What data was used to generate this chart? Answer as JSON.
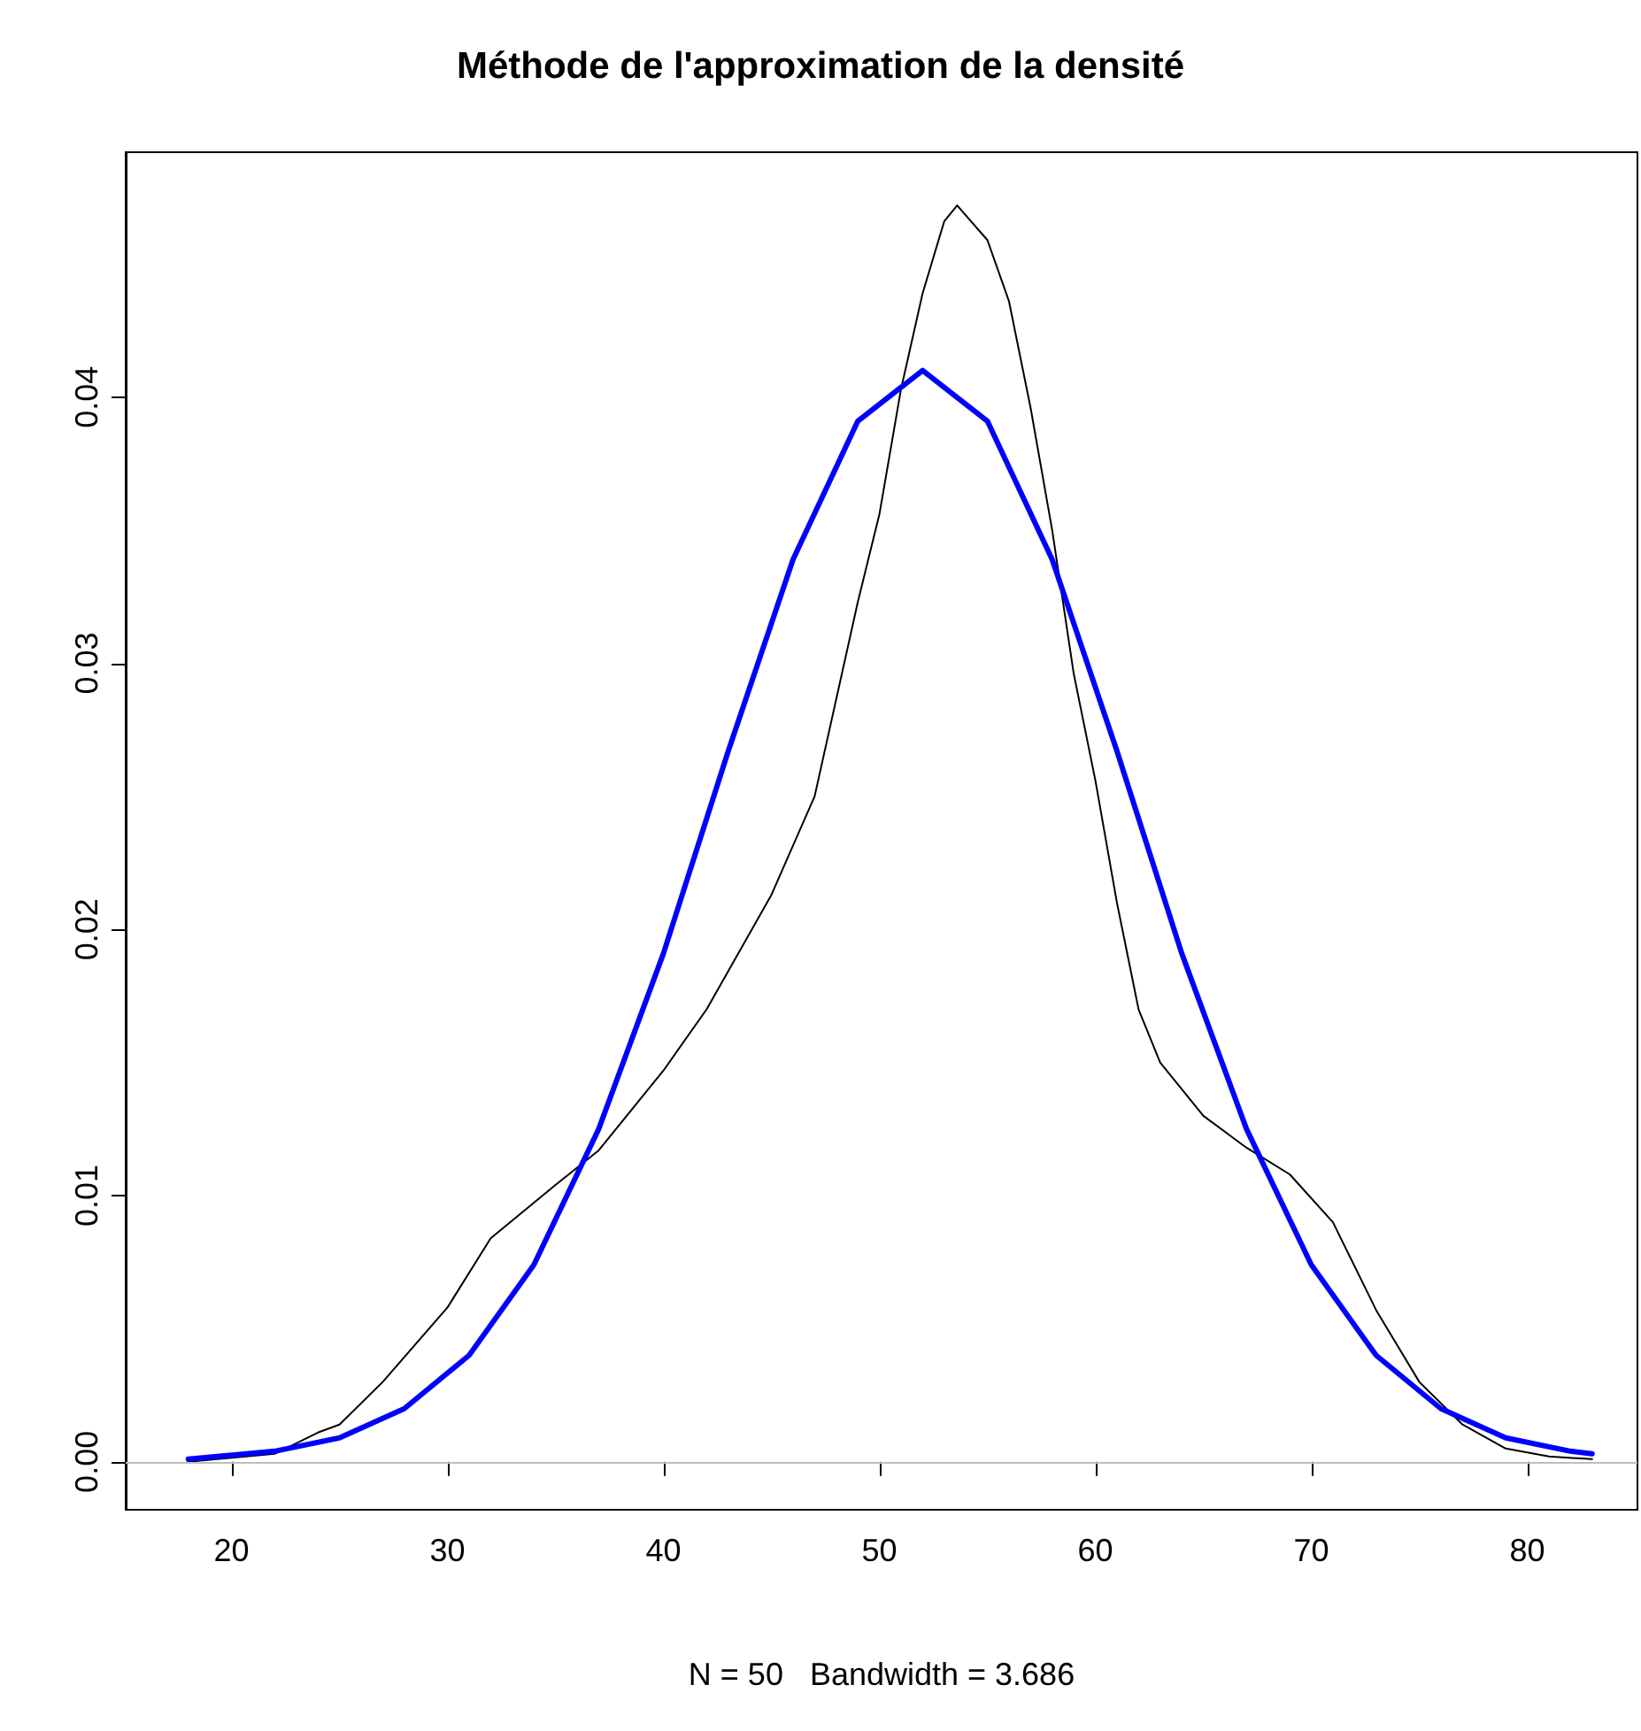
{
  "chart_data": {
    "type": "line",
    "title": "Méthode de l'approximation de la densité",
    "xlabel": "N = 50   Bandwidth = 3.686",
    "xlim": [
      15.1,
      85.1
    ],
    "xticks": [
      20,
      30,
      40,
      50,
      60,
      70,
      80
    ],
    "ylim": [
      -0.0018,
      0.0492
    ],
    "yticks": [
      {
        "value": 0,
        "label": "0.00"
      },
      {
        "value": 0.01,
        "label": "0.01"
      },
      {
        "value": 0.02,
        "label": "0.02"
      },
      {
        "value": 0.03,
        "label": "0.03"
      },
      {
        "value": 0.04,
        "label": "0.04"
      }
    ],
    "grid": false,
    "marker": "none",
    "line_style": "solid",
    "ref_lines": [
      {
        "axis": "y",
        "value": 0,
        "color": "#bebebe"
      }
    ],
    "series": [
      {
        "color": "#000000",
        "x": [
          18,
          22,
          24,
          25,
          27,
          30,
          32,
          35,
          37,
          40,
          42,
          45,
          47,
          49,
          50,
          51,
          52,
          53,
          53.6,
          55,
          56,
          57,
          58,
          59,
          60,
          61,
          62,
          63,
          65,
          67,
          69,
          71,
          73,
          75,
          77,
          79,
          81,
          83
        ],
        "values": [
          0,
          0.0003,
          0.0011,
          0.0014,
          0.003,
          0.0058,
          0.0084,
          0.0104,
          0.0117,
          0.0147,
          0.017,
          0.0213,
          0.025,
          0.0323,
          0.0356,
          0.0403,
          0.0439,
          0.0466,
          0.0472,
          0.0459,
          0.0436,
          0.0396,
          0.035,
          0.0296,
          0.0256,
          0.021,
          0.017,
          0.015,
          0.013,
          0.0118,
          0.0108,
          0.009,
          0.0057,
          0.003,
          0.0014,
          0.0005,
          0.0002,
          0.0001
        ]
      },
      {
        "color": "#0000ff",
        "x": [
          18,
          22,
          25,
          28,
          31,
          34,
          37,
          40,
          43,
          46,
          49,
          52,
          55,
          58,
          61,
          64,
          67,
          70,
          73,
          76,
          79,
          82,
          83
        ],
        "values": [
          0.0001,
          0.0004,
          0.0009,
          0.002,
          0.004,
          0.0074,
          0.0125,
          0.0191,
          0.0267,
          0.0339,
          0.0391,
          0.041,
          0.0391,
          0.0339,
          0.0267,
          0.0191,
          0.0125,
          0.0074,
          0.004,
          0.002,
          0.0009,
          0.0004,
          0.0003
        ]
      }
    ]
  }
}
